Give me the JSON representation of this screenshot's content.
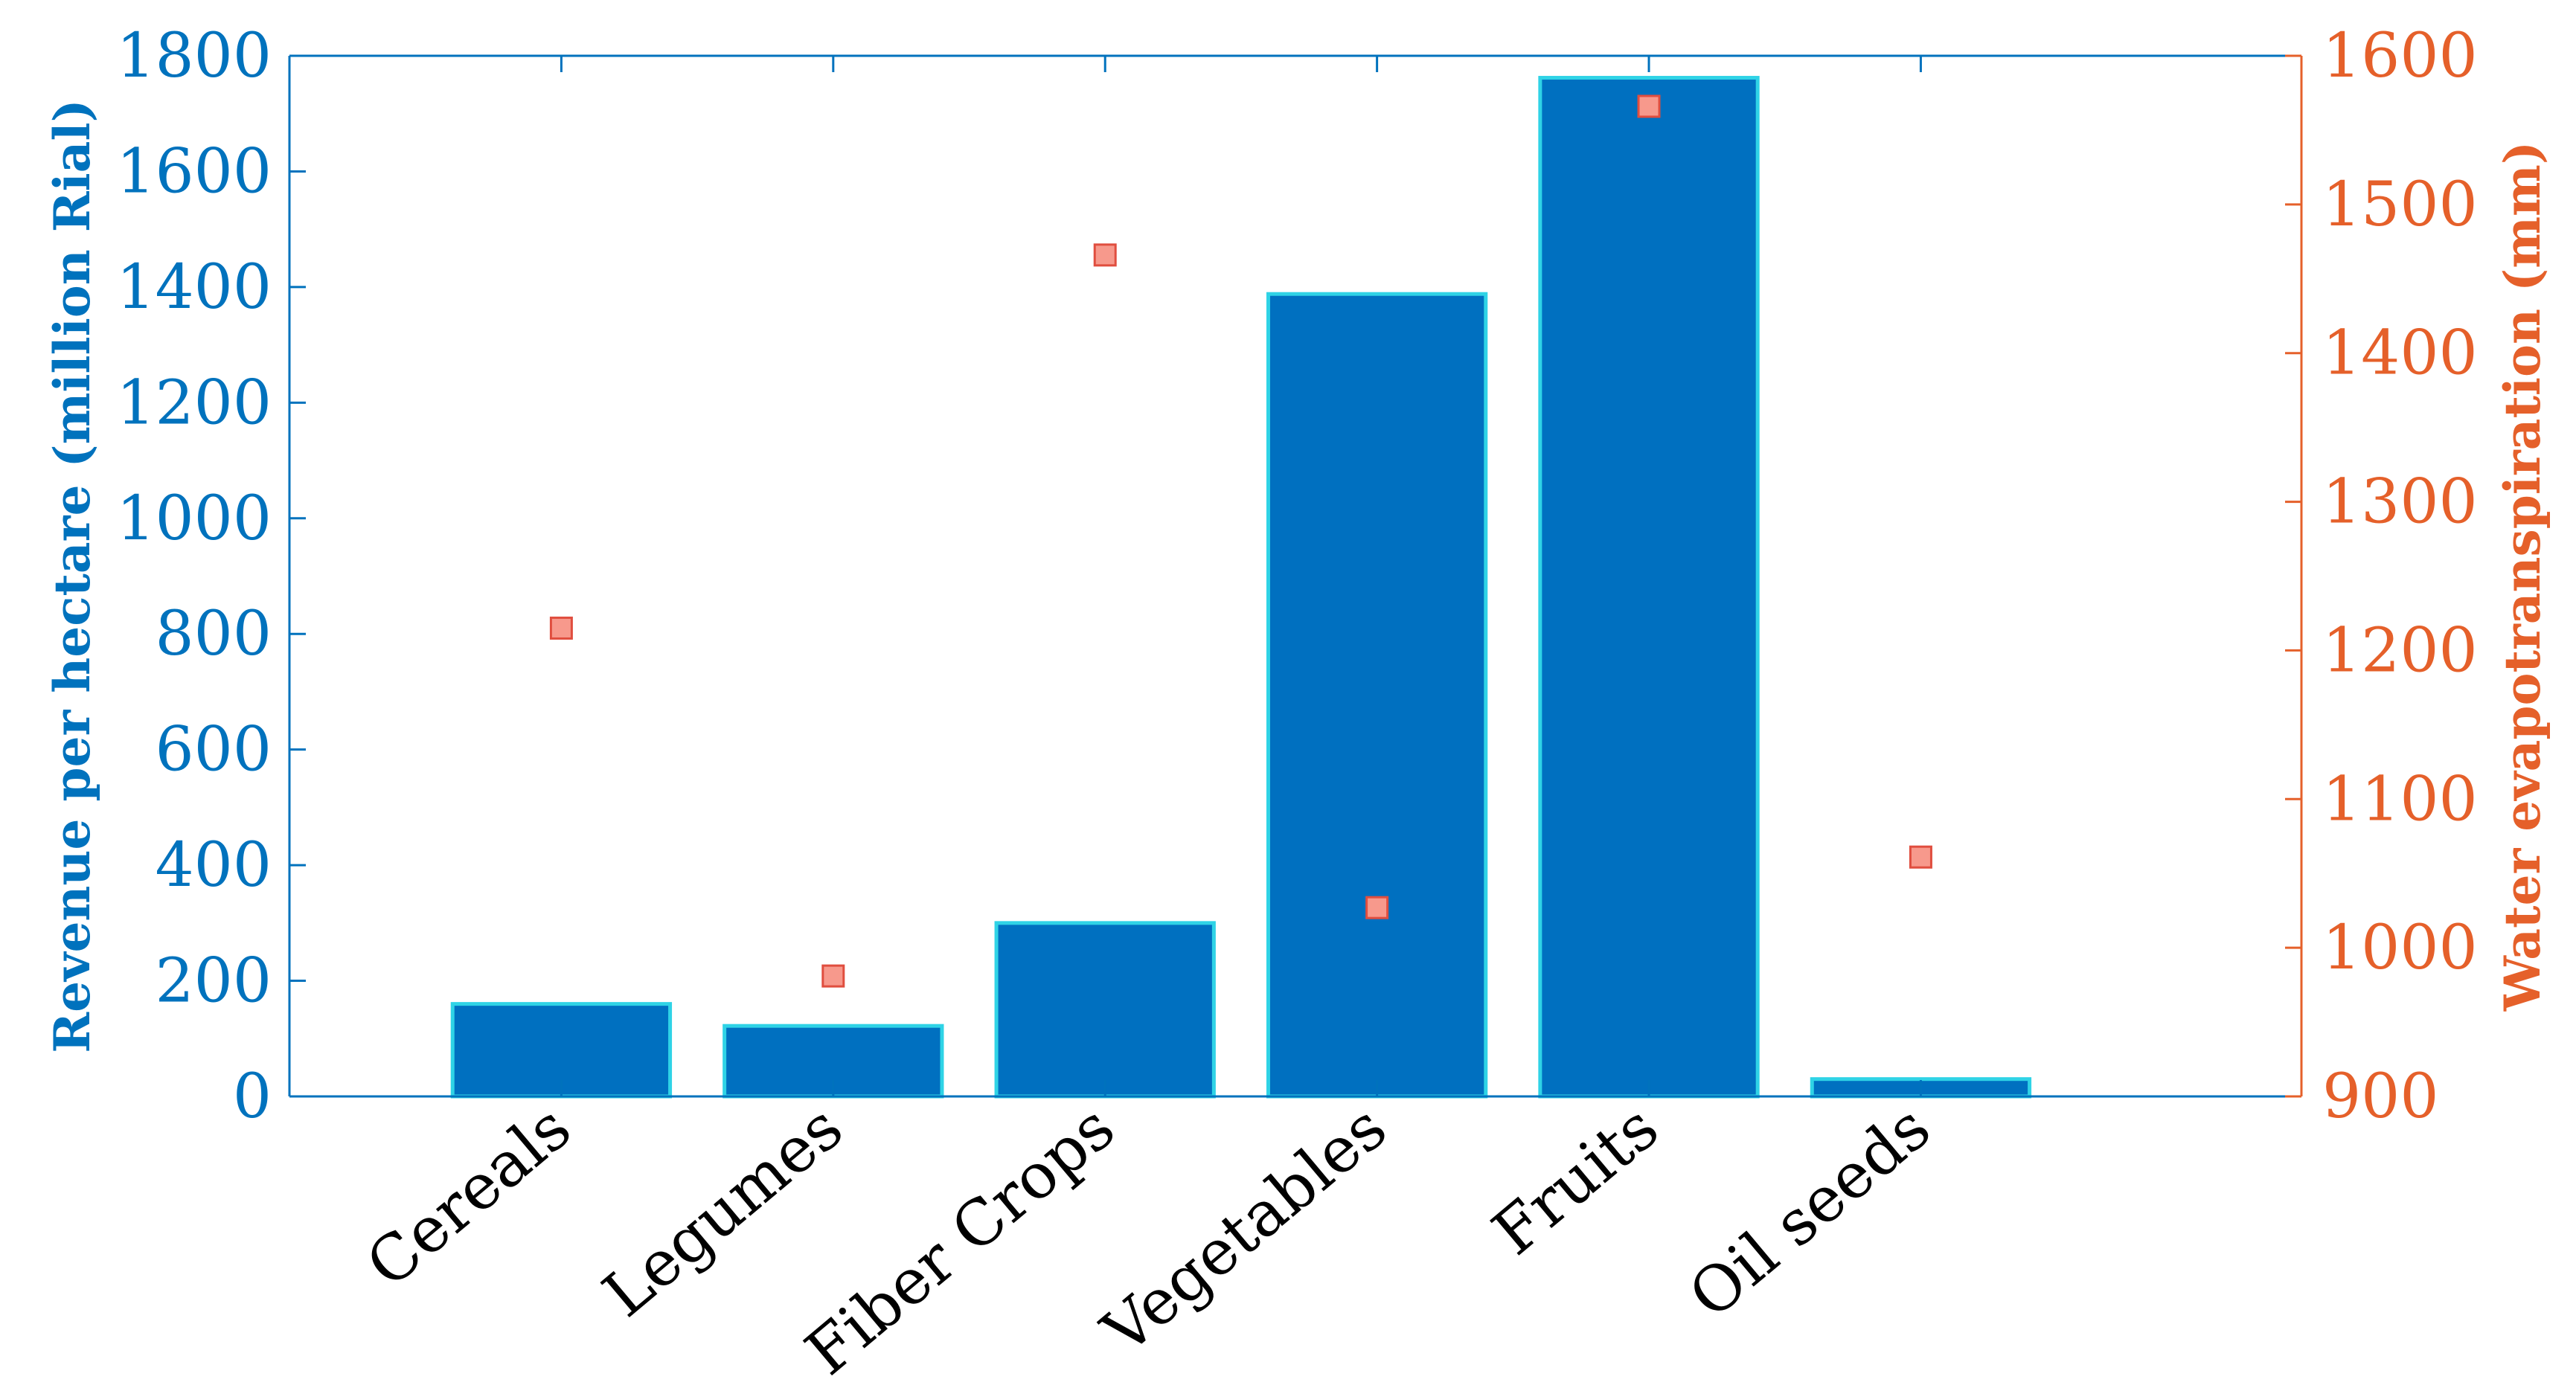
{
  "chart_data": {
    "type": "bar",
    "categories": [
      "Cereals",
      "Legumes",
      "Fiber Crops",
      "Vegetables",
      "Fruits",
      "Oil seeds"
    ],
    "series": [
      {
        "values": [
          160,
          122,
          300,
          1388,
          1762,
          30
        ],
        "axis": "left",
        "mark": "bar",
        "color": "#0070c0",
        "edge_color": "#2fd3e6"
      },
      {
        "values": [
          1215,
          981,
          1466,
          1027,
          1566,
          1061
        ],
        "axis": "right",
        "mark": "square-marker",
        "color": "#f7998c",
        "edge_color": "#e04e3f"
      }
    ],
    "left_axis": {
      "label": "Revenue per hectare (million Rial)",
      "ylim": [
        0,
        1800
      ],
      "ticks": [
        0,
        200,
        400,
        600,
        800,
        1000,
        1200,
        1400,
        1600,
        1800
      ],
      "color": "#0072bd"
    },
    "right_axis": {
      "label": "Water evapotranspiration (mm)",
      "ylim": [
        900,
        1600
      ],
      "ticks": [
        900,
        1000,
        1100,
        1200,
        1300,
        1400,
        1500,
        1600
      ],
      "color": "#e5602a"
    },
    "xlim": [
      0,
      7.4
    ],
    "grid": false,
    "legend": "none"
  }
}
